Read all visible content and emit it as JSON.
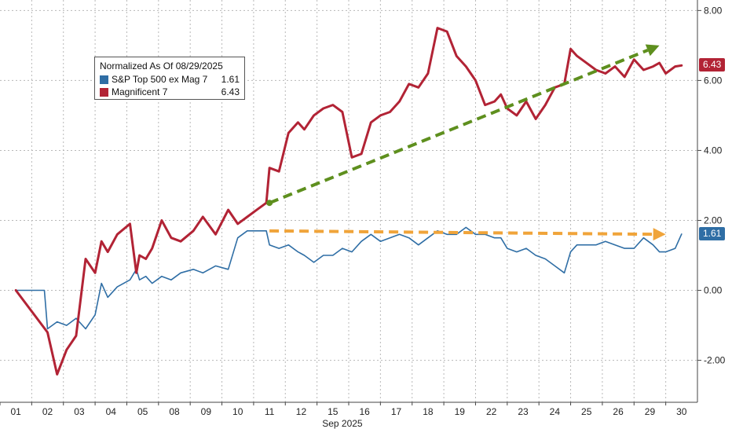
{
  "chart_data": {
    "type": "line",
    "title": "",
    "xlabel": "Sep 2025",
    "ylabel": "",
    "ylim": [
      -3.2,
      8.3
    ],
    "yticks": [
      -2,
      0,
      2,
      4,
      6,
      8
    ],
    "ytick_labels": [
      "-2.00",
      "0.00",
      "2.00",
      "4.00",
      "6.00",
      "8.00"
    ],
    "categories": [
      "01",
      "02",
      "03",
      "04",
      "05",
      "08",
      "09",
      "10",
      "11",
      "12",
      "15",
      "16",
      "17",
      "18",
      "19",
      "22",
      "23",
      "24",
      "25",
      "26",
      "29",
      "30"
    ],
    "grid": true,
    "y_axis_side": "right",
    "legend": {
      "placement": "top-left",
      "title": "Normalized As Of 08/29/2025",
      "entries": [
        {
          "name": "S&P Top 500 ex Mag 7",
          "value": "1.61",
          "color": "#2f6ea5"
        },
        {
          "name": "Magnificent 7",
          "value": "6.43",
          "color": "#b22335"
        }
      ]
    },
    "series": [
      {
        "name": "S&P Top 500 ex Mag 7",
        "color": "#2f6ea5",
        "end_label": "1.61",
        "x": [
          0,
          0.9,
          1.0,
          1.3,
          1.6,
          1.9,
          2.2,
          2.5,
          2.7,
          2.9,
          3.2,
          3.6,
          3.8,
          3.9,
          4.1,
          4.3,
          4.6,
          4.9,
          5.2,
          5.6,
          5.9,
          6.3,
          6.7,
          7.0,
          7.3,
          7.6,
          7.9,
          8.0,
          8.3,
          8.6,
          8.9,
          9.1,
          9.4,
          9.7,
          10.0,
          10.3,
          10.6,
          10.9,
          11.2,
          11.5,
          11.8,
          12.1,
          12.4,
          12.7,
          13.0,
          13.3,
          13.6,
          13.9,
          14.2,
          14.5,
          14.8,
          15.1,
          15.3,
          15.5,
          15.8,
          16.1,
          16.4,
          16.7,
          17.0,
          17.3,
          17.5,
          17.7,
          18.0,
          18.3,
          18.6,
          18.9,
          19.2,
          19.5,
          19.8,
          20.1,
          20.3,
          20.5,
          20.8,
          21.0
        ],
        "values": [
          0,
          0,
          -1.1,
          -0.9,
          -1.0,
          -0.8,
          -1.1,
          -0.7,
          0.2,
          -0.2,
          0.1,
          0.3,
          0.6,
          0.3,
          0.4,
          0.2,
          0.4,
          0.3,
          0.5,
          0.6,
          0.5,
          0.7,
          0.6,
          1.5,
          1.7,
          1.7,
          1.7,
          1.3,
          1.2,
          1.3,
          1.1,
          1.0,
          0.8,
          1.0,
          1.0,
          1.2,
          1.1,
          1.4,
          1.6,
          1.4,
          1.5,
          1.6,
          1.5,
          1.3,
          1.5,
          1.7,
          1.6,
          1.6,
          1.8,
          1.6,
          1.6,
          1.5,
          1.5,
          1.2,
          1.1,
          1.2,
          1.0,
          0.9,
          0.7,
          0.5,
          1.1,
          1.3,
          1.3,
          1.3,
          1.4,
          1.3,
          1.2,
          1.2,
          1.5,
          1.3,
          1.1,
          1.1,
          1.2,
          1.61
        ]
      },
      {
        "name": "Magnificent 7",
        "color": "#b22335",
        "end_label": "6.43",
        "x": [
          0,
          1.0,
          1.3,
          1.6,
          1.9,
          2.2,
          2.5,
          2.7,
          2.9,
          3.2,
          3.6,
          3.8,
          3.9,
          4.1,
          4.3,
          4.6,
          4.9,
          5.2,
          5.6,
          5.9,
          6.3,
          6.7,
          7.0,
          7.3,
          7.6,
          7.9,
          8.0,
          8.3,
          8.6,
          8.9,
          9.1,
          9.4,
          9.7,
          10.0,
          10.3,
          10.6,
          10.9,
          11.2,
          11.5,
          11.8,
          12.1,
          12.4,
          12.7,
          13.0,
          13.3,
          13.6,
          13.9,
          14.2,
          14.5,
          14.8,
          15.1,
          15.3,
          15.5,
          15.8,
          16.1,
          16.4,
          16.7,
          17.0,
          17.3,
          17.5,
          17.7,
          18.0,
          18.3,
          18.6,
          18.9,
          19.2,
          19.5,
          19.8,
          20.1,
          20.3,
          20.5,
          20.8,
          21.0
        ],
        "values": [
          0,
          -1.2,
          -2.4,
          -1.7,
          -1.3,
          0.9,
          0.5,
          1.4,
          1.1,
          1.6,
          1.9,
          0.5,
          1.0,
          0.9,
          1.2,
          2.0,
          1.5,
          1.4,
          1.7,
          2.1,
          1.6,
          2.3,
          1.9,
          2.1,
          2.3,
          2.5,
          3.5,
          3.4,
          4.5,
          4.8,
          4.6,
          5.0,
          5.2,
          5.3,
          5.1,
          3.8,
          3.9,
          4.8,
          5.0,
          5.1,
          5.4,
          5.9,
          5.8,
          6.2,
          7.5,
          7.4,
          6.7,
          6.4,
          6.0,
          5.3,
          5.4,
          5.6,
          5.2,
          5.0,
          5.4,
          4.9,
          5.3,
          5.8,
          5.9,
          6.9,
          6.7,
          6.5,
          6.3,
          6.2,
          6.4,
          6.1,
          6.6,
          6.3,
          6.4,
          6.5,
          6.2,
          6.4,
          6.43
        ]
      }
    ],
    "annotations": [
      {
        "type": "arrow",
        "color": "#5e8f1e",
        "from": [
          8.0,
          2.5
        ],
        "to": [
          20.3,
          7.0
        ]
      },
      {
        "type": "arrow",
        "color": "#f0a43a",
        "from": [
          8.0,
          1.7
        ],
        "to": [
          20.5,
          1.6
        ]
      }
    ]
  }
}
